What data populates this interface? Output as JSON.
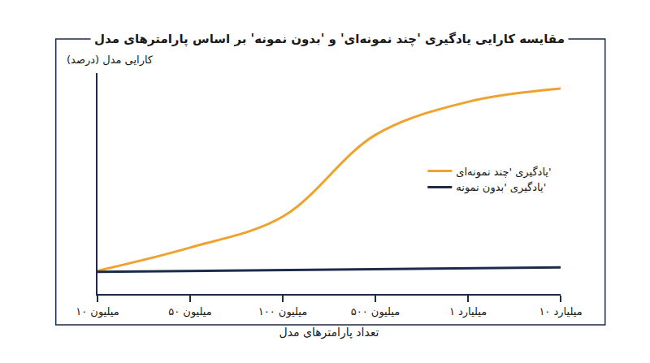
{
  "chart_data": {
    "type": "line",
    "title": "مقایسه کارایی یادگیری 'چند نمونه‌ای' و 'بدون نمونه' بر اساس پارامترهای مدل",
    "x_label": "تعداد پارامترهای مدل",
    "y_label": "کارایی مدل (درصد)",
    "categories": [
      "۱۰ میلیون",
      "۵۰ میلیون",
      "۱۰۰ میلیون",
      "۵۰۰ میلیون",
      "۱ میلیارد",
      "۱۰ میلیارد"
    ],
    "series": [
      {
        "name": "یادگیری 'چند نمونه‌ای'",
        "color": "#f0a22e",
        "line_style": "smooth",
        "values": [
          10.5,
          21,
          35,
          72,
          87,
          93
        ]
      },
      {
        "name": "یادگیری 'بدون نمونه'",
        "color": "#1c2b4a",
        "line_style": "solid",
        "values": [
          10,
          10.4,
          10.8,
          11.2,
          11.6,
          12
        ]
      }
    ],
    "ylim": [
      0,
      100
    ],
    "yticks": [],
    "tick_labels": "x",
    "grid": false,
    "legend": "right"
  }
}
